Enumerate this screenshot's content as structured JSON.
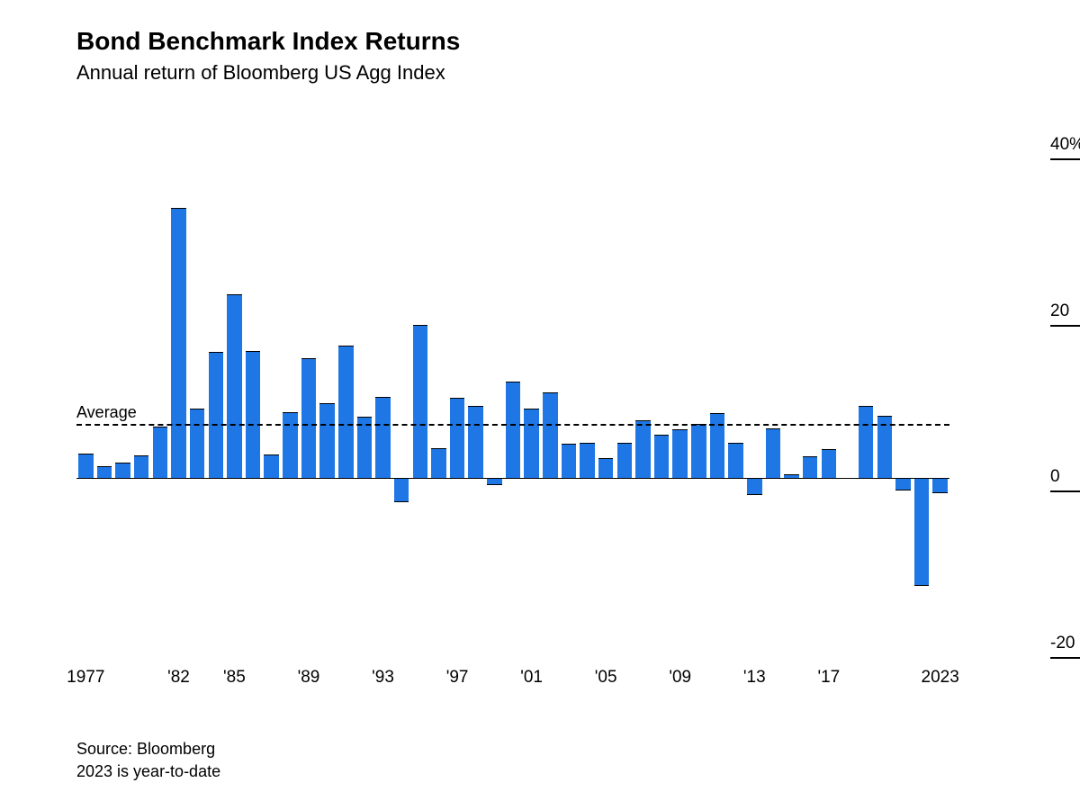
{
  "title": "Bond Benchmark Index Returns",
  "subtitle": "Annual return of Bloomberg US Agg Index",
  "source": "Source: Bloomberg",
  "note": "2023 is year-to-date",
  "chart": {
    "type": "bar",
    "bar_color": "#1f77e6",
    "bar_border": "#000000",
    "background_color": "#ffffff",
    "avg_label": "Average",
    "average_value": 6.5,
    "ylim": [
      -22,
      42
    ],
    "y_ticks": [
      {
        "value": 40,
        "label": "40%"
      },
      {
        "value": 20,
        "label": "20"
      },
      {
        "value": 0,
        "label": "0"
      },
      {
        "value": -20,
        "label": "-20"
      }
    ],
    "x_ticks": [
      {
        "year": 1977,
        "label": "1977"
      },
      {
        "year": 1982,
        "label": "'82"
      },
      {
        "year": 1985,
        "label": "'85"
      },
      {
        "year": 1989,
        "label": "'89"
      },
      {
        "year": 1993,
        "label": "'93"
      },
      {
        "year": 1997,
        "label": "'97"
      },
      {
        "year": 2001,
        "label": "'01"
      },
      {
        "year": 2005,
        "label": "'05"
      },
      {
        "year": 2009,
        "label": "'09"
      },
      {
        "year": 2013,
        "label": "'13"
      },
      {
        "year": 2017,
        "label": "'17"
      },
      {
        "year": 2023,
        "label": "2023"
      }
    ],
    "years_start": 1977,
    "years_end": 2023,
    "values": [
      3.0,
      1.4,
      1.9,
      2.7,
      6.2,
      32.6,
      8.4,
      15.2,
      22.1,
      15.3,
      2.8,
      7.9,
      14.5,
      9.0,
      16.0,
      7.4,
      9.8,
      -2.9,
      18.5,
      3.6,
      9.7,
      8.7,
      -0.8,
      11.6,
      8.4,
      10.3,
      4.1,
      4.3,
      2.4,
      4.3,
      7.0,
      5.2,
      5.9,
      6.5,
      7.8,
      4.2,
      -2.0,
      6.0,
      0.5,
      2.6,
      3.5,
      0.0,
      8.7,
      7.5,
      -1.5,
      -13.0,
      -1.8
    ],
    "bar_gap_ratio": 0.2,
    "title_fontsize": 28,
    "subtitle_fontsize": 22,
    "axis_fontsize": 19,
    "footnote_fontsize": 18
  }
}
